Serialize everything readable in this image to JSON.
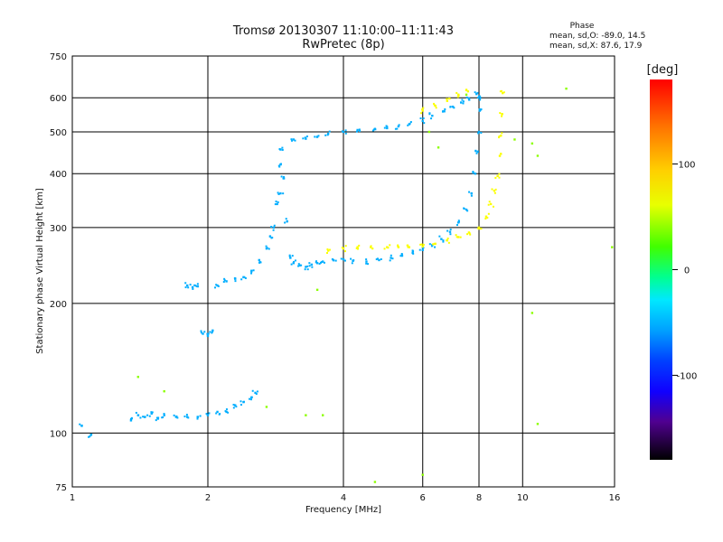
{
  "colors": {
    "background": "#ffffff",
    "frame": "#000000",
    "grid": "#000000"
  },
  "chart_data": {
    "type": "scatter",
    "title": "Tromsø 20130307 11:10:00–11:11:43",
    "subtitle": "RwPretec (8p)",
    "xlabel": "Frequency [MHz]",
    "ylabel": "Stationary phase Virtual Height [km]",
    "x_scale": "log",
    "y_scale": "log",
    "xlim": [
      1,
      16
    ],
    "ylim": [
      75,
      750
    ],
    "x_ticks": [
      1,
      2,
      4,
      6,
      8,
      10,
      16
    ],
    "x_tick_labels": [
      "1",
      "2",
      "4",
      "6",
      "8",
      "10",
      "16"
    ],
    "y_ticks": [
      75,
      100,
      200,
      300,
      400,
      500,
      600,
      750
    ],
    "y_tick_labels": [
      "75",
      "100",
      "200",
      "300",
      "400",
      "500",
      "600",
      "750"
    ],
    "grid": true,
    "phase_info": {
      "title": "Phase",
      "line_o": "mean, sd,O: -89.0, 14.5",
      "line_x": "mean, sd,X:  87.6, 17.9"
    },
    "colorbar": {
      "label": "[deg]",
      "range": [
        -180,
        180
      ],
      "ticks": [
        100,
        0,
        -100
      ],
      "tick_labels": [
        "100",
        "0",
        "-100"
      ],
      "colormap": "rainbow"
    },
    "series": [
      {
        "mode": "O",
        "color_value": -95,
        "points": [
          [
            1.05,
            104
          ],
          [
            1.1,
            99
          ],
          [
            1.35,
            107
          ],
          [
            1.4,
            110
          ],
          [
            1.45,
            109
          ],
          [
            1.5,
            111
          ],
          [
            1.55,
            108
          ],
          [
            1.6,
            110
          ],
          [
            1.7,
            109
          ],
          [
            1.8,
            109
          ],
          [
            1.9,
            109
          ],
          [
            2.0,
            110
          ],
          [
            2.1,
            112
          ],
          [
            2.2,
            112
          ],
          [
            2.3,
            116
          ],
          [
            2.4,
            118
          ],
          [
            2.5,
            121
          ],
          [
            2.55,
            124
          ],
          [
            1.8,
            220
          ],
          [
            1.85,
            218
          ],
          [
            1.9,
            219
          ],
          [
            1.95,
            170
          ],
          [
            2.0,
            168
          ],
          [
            2.05,
            173
          ],
          [
            2.1,
            220
          ],
          [
            2.2,
            225
          ],
          [
            2.3,
            228
          ],
          [
            2.4,
            230
          ],
          [
            2.5,
            238
          ],
          [
            2.6,
            252
          ],
          [
            2.7,
            268
          ],
          [
            2.75,
            286
          ],
          [
            2.8,
            300
          ],
          [
            2.85,
            340
          ],
          [
            2.9,
            360
          ],
          [
            2.9,
            420
          ],
          [
            2.9,
            455
          ],
          [
            2.95,
            390
          ],
          [
            3.0,
            310
          ],
          [
            3.05,
            255
          ],
          [
            3.1,
            248
          ],
          [
            3.2,
            245
          ],
          [
            3.3,
            243
          ],
          [
            3.4,
            246
          ],
          [
            3.5,
            248
          ],
          [
            3.6,
            250
          ],
          [
            3.8,
            252
          ],
          [
            4.0,
            253
          ],
          [
            4.2,
            251
          ],
          [
            4.5,
            250
          ],
          [
            4.8,
            252
          ],
          [
            5.1,
            255
          ],
          [
            5.4,
            258
          ],
          [
            5.7,
            262
          ],
          [
            6.0,
            266
          ],
          [
            6.3,
            273
          ],
          [
            6.6,
            282
          ],
          [
            6.9,
            293
          ],
          [
            7.2,
            308
          ],
          [
            7.5,
            330
          ],
          [
            7.7,
            360
          ],
          [
            7.85,
            400
          ],
          [
            7.95,
            450
          ],
          [
            8.0,
            500
          ],
          [
            8.03,
            560
          ],
          [
            8.05,
            600
          ],
          [
            3.1,
            480
          ],
          [
            3.3,
            482
          ],
          [
            3.5,
            487
          ],
          [
            3.7,
            495
          ],
          [
            4.0,
            500
          ],
          [
            4.3,
            505
          ],
          [
            4.7,
            508
          ],
          [
            5.0,
            510
          ],
          [
            5.3,
            515
          ],
          [
            5.6,
            521
          ],
          [
            6.0,
            530
          ],
          [
            6.3,
            545
          ],
          [
            6.7,
            558
          ],
          [
            7.0,
            572
          ],
          [
            7.3,
            585
          ],
          [
            7.6,
            598
          ],
          [
            7.9,
            612
          ]
        ]
      },
      {
        "mode": "X",
        "color_value": 95,
        "points": [
          [
            3.7,
            265
          ],
          [
            4.0,
            268
          ],
          [
            4.3,
            270
          ],
          [
            4.6,
            270
          ],
          [
            5.0,
            270
          ],
          [
            5.3,
            270
          ],
          [
            5.6,
            270
          ],
          [
            6.0,
            271
          ],
          [
            6.4,
            275
          ],
          [
            6.8,
            280
          ],
          [
            7.2,
            285
          ],
          [
            7.6,
            292
          ],
          [
            8.0,
            300
          ],
          [
            8.3,
            318
          ],
          [
            8.5,
            340
          ],
          [
            8.65,
            365
          ],
          [
            8.8,
            395
          ],
          [
            8.9,
            440
          ],
          [
            8.95,
            490
          ],
          [
            9.0,
            550
          ],
          [
            9.03,
            615
          ],
          [
            6.0,
            560
          ],
          [
            6.4,
            575
          ],
          [
            6.8,
            590
          ],
          [
            7.2,
            610
          ],
          [
            7.5,
            625
          ]
        ]
      },
      {
        "mode": "scatter",
        "color_value": 60,
        "points": [
          [
            1.4,
            135
          ],
          [
            1.6,
            125
          ],
          [
            2.7,
            115
          ],
          [
            3.3,
            110
          ],
          [
            3.6,
            110
          ],
          [
            3.5,
            215
          ],
          [
            4.7,
            77
          ],
          [
            6.0,
            80
          ],
          [
            6.2,
            500
          ],
          [
            6.5,
            460
          ],
          [
            7.5,
            610
          ],
          [
            9.6,
            480
          ],
          [
            10.5,
            470
          ],
          [
            10.8,
            440
          ],
          [
            10.5,
            190
          ],
          [
            10.8,
            105
          ],
          [
            12.5,
            630
          ],
          [
            15.8,
            270
          ]
        ]
      }
    ]
  }
}
